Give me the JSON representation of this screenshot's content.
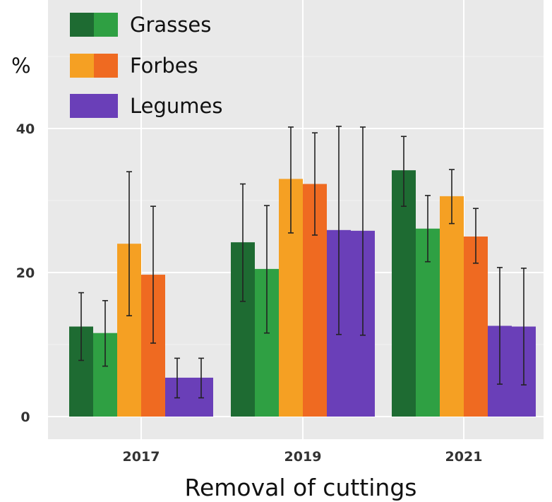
{
  "chart_data": {
    "type": "bar",
    "title": "",
    "xlabel": "Removal of cuttings",
    "ylabel": "%",
    "ylim": [
      0,
      40
    ],
    "yticks": [
      0,
      20,
      40
    ],
    "grid": true,
    "legend_position": "top-left",
    "categories": [
      "2017",
      "2019",
      "2021"
    ],
    "legend": [
      {
        "label": "Grasses",
        "colors": [
          "#1e6b32",
          "#2fa043"
        ]
      },
      {
        "label": "Forbes",
        "colors": [
          "#f5a023",
          "#ef6a21"
        ]
      },
      {
        "label": "Legumes",
        "colors": [
          "#6a3fb8",
          "#6a3fb8"
        ]
      }
    ],
    "series": [
      {
        "group": "Grasses",
        "color": "#1e6b32",
        "values": [
          12.5,
          24.2,
          34.2
        ],
        "err_low": [
          7.8,
          16.0,
          29.2
        ],
        "err_high": [
          17.2,
          32.3,
          38.9
        ]
      },
      {
        "group": "Grasses",
        "color": "#2fa043",
        "values": [
          11.6,
          20.5,
          26.1
        ],
        "err_low": [
          7.0,
          11.6,
          21.5
        ],
        "err_high": [
          16.1,
          29.3,
          30.7
        ]
      },
      {
        "group": "Forbes",
        "color": "#f5a023",
        "values": [
          24.0,
          33.0,
          30.6
        ],
        "err_low": [
          14.0,
          25.5,
          26.8
        ],
        "err_high": [
          34.0,
          40.2,
          34.3
        ]
      },
      {
        "group": "Forbes",
        "color": "#ef6a21",
        "values": [
          19.7,
          32.3,
          25.0
        ],
        "err_low": [
          10.2,
          25.2,
          21.3
        ],
        "err_high": [
          29.2,
          39.4,
          28.9
        ]
      },
      {
        "group": "Legumes",
        "color": "#6a3fb8",
        "values": [
          5.4,
          25.9,
          12.6
        ],
        "err_low": [
          2.6,
          11.4,
          4.5
        ],
        "err_high": [
          8.1,
          40.3,
          20.7
        ]
      },
      {
        "group": "Legumes",
        "color": "#6a3fb8",
        "values": [
          5.4,
          25.8,
          12.5
        ],
        "err_low": [
          2.6,
          11.3,
          4.4
        ],
        "err_high": [
          8.1,
          40.2,
          20.6
        ]
      }
    ]
  }
}
